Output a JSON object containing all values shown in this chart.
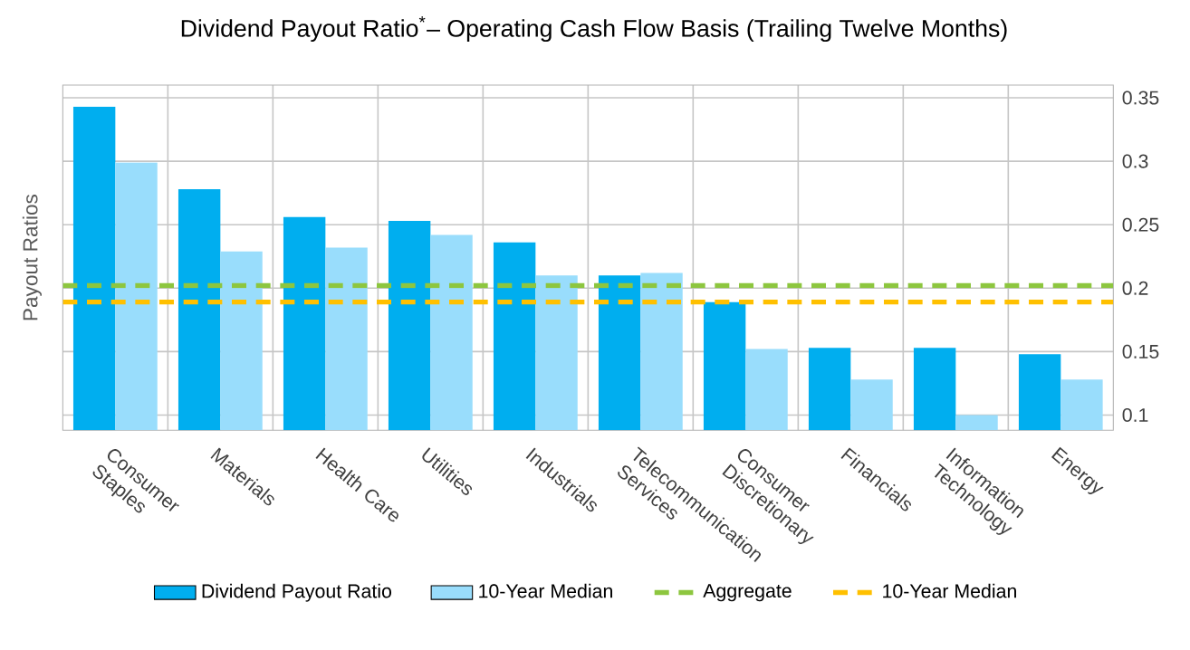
{
  "chart_data": {
    "type": "bar",
    "title": "Dividend Payout Ratio$^{*}$– Operating Cash Flow Basis (Trailing Twelve Months)",
    "ylabel": "Payout Ratios",
    "categories": [
      "Consumer Staples",
      "Materials",
      "Health Care",
      "Utilities",
      "Industrials",
      "Telecommunication Services",
      "Consumer Discretionary",
      "Financials",
      "Information Technology",
      "Energy"
    ],
    "series": [
      {
        "name": "Dividend Payout Ratio",
        "color": "#00aeef",
        "values": [
          0.343,
          0.278,
          0.256,
          0.253,
          0.236,
          0.21,
          0.189,
          0.153,
          0.153,
          0.148
        ]
      },
      {
        "name": "10-Year Median",
        "color": "#99ddfc",
        "values": [
          0.299,
          0.229,
          0.232,
          0.242,
          0.21,
          0.212,
          0.152,
          0.128,
          0.1,
          0.128
        ]
      }
    ],
    "ref_lines": [
      {
        "axis": "y",
        "value": 0.202,
        "label": "Aggregate",
        "color": "#8dc63f",
        "line_style": "dashed"
      },
      {
        "axis": "y",
        "value": 0.189,
        "label": "10-Year Median",
        "color": "#ffc000",
        "line_style": "dashed"
      }
    ],
    "ylim": [
      0.088,
      0.36
    ],
    "yticks": [
      0.1,
      0.15,
      0.2,
      0.25,
      0.3,
      0.35
    ],
    "grid": true,
    "legend": "bottom"
  }
}
